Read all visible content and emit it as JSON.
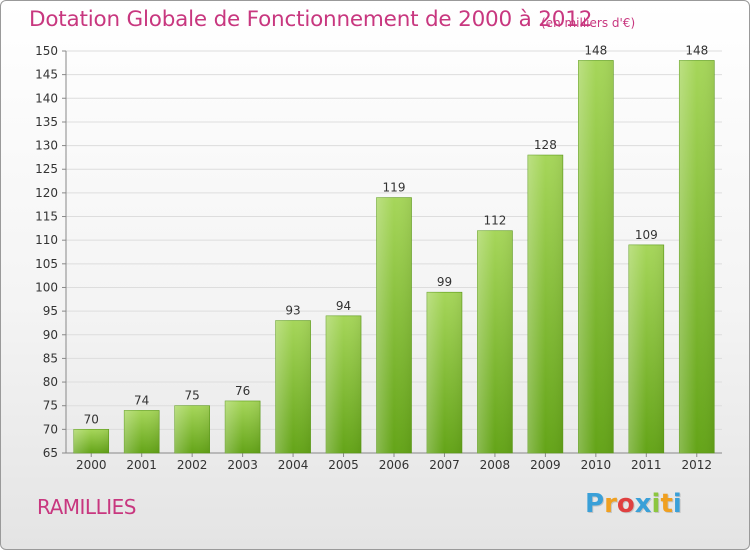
{
  "header": {
    "title": "Dotation Globale de Fonctionnement de 2000 à 2012",
    "subtitle": "(en milliers d'€)"
  },
  "footer": {
    "commune": "RAMILLIES",
    "logo_letters": [
      "P",
      "r",
      "o",
      "x",
      "i",
      "t",
      "i"
    ],
    "logo_colors": [
      "#3aa0d8",
      "#f0a020",
      "#e04040",
      "#3aa0d8",
      "#8cc63f",
      "#f0a020",
      "#3aa0d8"
    ]
  },
  "colors": {
    "bar_light": "#a6d65a",
    "bar_dark": "#64a418",
    "title": "#c8377f",
    "grid": "#dddddd"
  },
  "chart_data": {
    "type": "bar",
    "title": "Dotation Globale de Fonctionnement de 2000 à 2012",
    "subtitle": "(en milliers d'€)",
    "xlabel": "",
    "ylabel": "",
    "categories": [
      "2000",
      "2001",
      "2002",
      "2003",
      "2004",
      "2005",
      "2006",
      "2007",
      "2008",
      "2009",
      "2010",
      "2011",
      "2012"
    ],
    "values": [
      70,
      74,
      75,
      76,
      93,
      94,
      119,
      99,
      112,
      128,
      148,
      109,
      148
    ],
    "ylim": [
      65,
      150
    ],
    "yticks": [
      65,
      70,
      75,
      80,
      85,
      90,
      95,
      100,
      105,
      110,
      115,
      120,
      125,
      130,
      135,
      140,
      145,
      150
    ],
    "grid": true
  }
}
